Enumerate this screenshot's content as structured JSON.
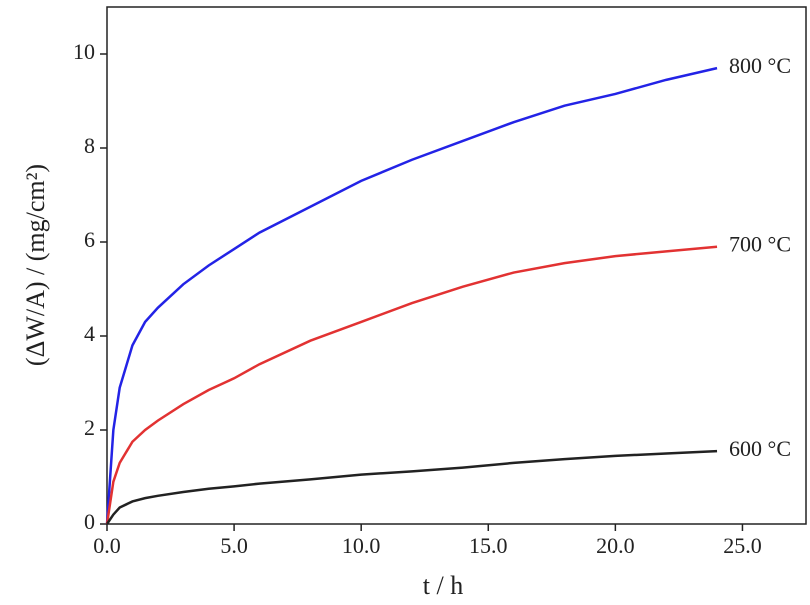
{
  "chart_data": {
    "type": "line",
    "xlabel": "t / h",
    "ylabel": "(ΔW/A) / (mg/cm²)",
    "x": [
      0,
      0.25,
      0.5,
      1,
      1.5,
      2,
      3,
      4,
      5,
      6,
      8,
      10,
      12,
      14,
      16,
      18,
      20,
      22,
      24
    ],
    "series": [
      {
        "name": "800 °C",
        "color": "#2323e6",
        "values": [
          0,
          2.0,
          2.9,
          3.8,
          4.3,
          4.6,
          5.1,
          5.5,
          5.85,
          6.2,
          6.75,
          7.3,
          7.75,
          8.15,
          8.55,
          8.9,
          9.15,
          9.45,
          9.7
        ]
      },
      {
        "name": "700 °C",
        "color": "#e23232",
        "values": [
          0,
          0.9,
          1.3,
          1.75,
          2.0,
          2.2,
          2.55,
          2.85,
          3.1,
          3.4,
          3.9,
          4.3,
          4.7,
          5.05,
          5.35,
          5.55,
          5.7,
          5.8,
          5.9
        ]
      },
      {
        "name": "600 °C",
        "color": "#222222",
        "values": [
          0,
          0.2,
          0.35,
          0.48,
          0.55,
          0.6,
          0.68,
          0.75,
          0.8,
          0.86,
          0.95,
          1.05,
          1.12,
          1.2,
          1.3,
          1.38,
          1.45,
          1.5,
          1.55
        ]
      }
    ],
    "xlim": [
      0,
      27.5
    ],
    "ylim": [
      0,
      11
    ],
    "xticks": [
      {
        "value": 0,
        "label": "0.0"
      },
      {
        "value": 5,
        "label": "5.0"
      },
      {
        "value": 10,
        "label": "10.0"
      },
      {
        "value": 15,
        "label": "15.0"
      },
      {
        "value": 20,
        "label": "20.0"
      },
      {
        "value": 25,
        "label": "25.0"
      }
    ],
    "yticks": [
      0,
      2,
      4,
      6,
      8,
      10
    ],
    "grid": false
  }
}
